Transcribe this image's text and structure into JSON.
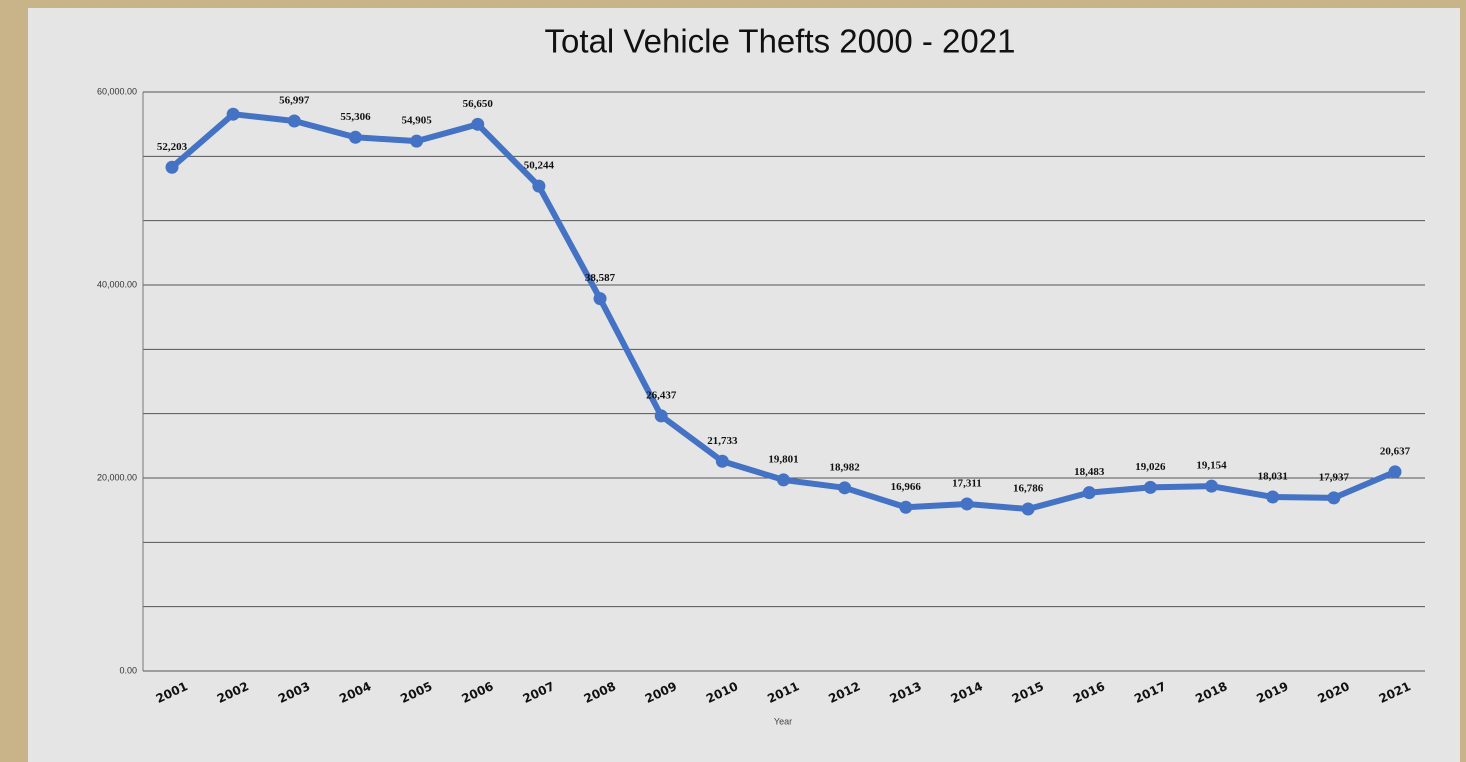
{
  "chart_data": {
    "type": "line",
    "title": "Total Vehicle Thefts 2000 - 2021",
    "x_label": "Year",
    "categories": [
      "2001",
      "2002",
      "2003",
      "2004",
      "2005",
      "2006",
      "2007",
      "2008",
      "2009",
      "2010",
      "2011",
      "2012",
      "2013",
      "2014",
      "2015",
      "2016",
      "2017",
      "2018",
      "2019",
      "2020",
      "2021"
    ],
    "values": [
      52203,
      57700,
      56997,
      55306,
      54905,
      56650,
      50244,
      38587,
      26437,
      21733,
      19801,
      18982,
      16966,
      17311,
      16786,
      18483,
      19026,
      19154,
      18031,
      17937,
      20637
    ],
    "value_labels": [
      "52,203",
      null,
      "56,997",
      "55,306",
      "54,905",
      "56,650",
      "50,244",
      "38,587",
      "26,437",
      "21,733",
      "19,801",
      "18,982",
      "16,966",
      "17,311",
      "16,786",
      "18,483",
      "19,026",
      "19,154",
      "18,031",
      "17,937",
      "20,637"
    ],
    "color": "#4472c4",
    "ylim": [
      0,
      60000
    ],
    "yticks": [
      {
        "value": 0,
        "label": "0.00"
      },
      {
        "value": 20000,
        "label": "20,000.00"
      },
      {
        "value": 40000,
        "label": "40,000.00"
      },
      {
        "value": 60000,
        "label": "60,000.00"
      }
    ],
    "minor_grid": [
      6666.67,
      13333.33,
      26666.67,
      33333.33,
      46666.67,
      53333.33
    ],
    "grid": true
  }
}
